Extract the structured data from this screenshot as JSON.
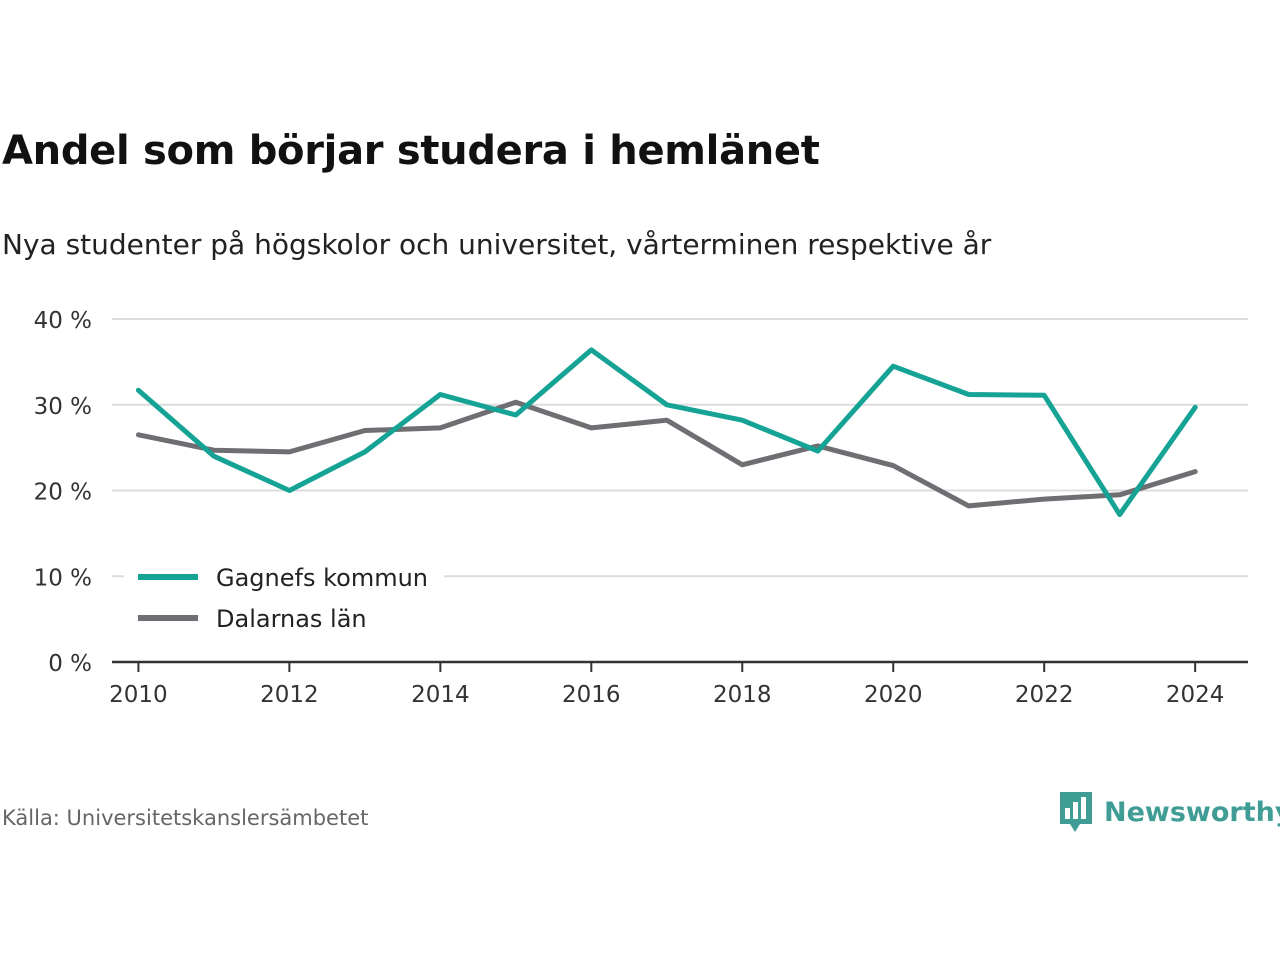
{
  "header": {
    "title": "Andel som börjar studera i hemlänet",
    "subtitle": "Nya studenter på högskolor och universitet, vårterminen respektive år"
  },
  "footer": {
    "source": "Källa: Universitetskanslersämbetet",
    "brand": "Newsworthy",
    "brand_icon": "bar-chart-speech-bubble-icon"
  },
  "colors": {
    "series_1": "#14a394",
    "series_2": "#6e6e73",
    "grid": "#dcdcdc",
    "axis": "#333333",
    "brand": "#3f9d95"
  },
  "chart_data": {
    "type": "line",
    "x": [
      2010,
      2011,
      2012,
      2013,
      2014,
      2015,
      2016,
      2017,
      2018,
      2019,
      2020,
      2021,
      2022,
      2023,
      2024
    ],
    "series": [
      {
        "name": "Gagnefs kommun",
        "values": [
          31.7,
          24.0,
          20.0,
          24.5,
          31.2,
          28.8,
          36.4,
          30.0,
          28.2,
          24.6,
          34.5,
          31.2,
          31.1,
          17.2,
          29.7
        ]
      },
      {
        "name": "Dalarnas län",
        "values": [
          26.5,
          24.7,
          24.5,
          27.0,
          27.3,
          30.3,
          27.3,
          28.2,
          23.0,
          25.2,
          22.9,
          18.2,
          19.0,
          19.5,
          22.2
        ]
      }
    ],
    "xticks": [
      2010,
      2012,
      2014,
      2016,
      2018,
      2020,
      2022,
      2024
    ],
    "xtick_labels": [
      "2010",
      "2012",
      "2014",
      "2016",
      "2018",
      "2020",
      "2022",
      "2024"
    ],
    "yticks": [
      0,
      10,
      20,
      30,
      40
    ],
    "ytick_labels": [
      "0 %",
      "10 %",
      "20 %",
      "30 %",
      "40 %"
    ],
    "xlim": [
      2009.65,
      2024.7
    ],
    "ylim": [
      0,
      40
    ],
    "grid": true,
    "legend_position": "bottom-left"
  }
}
